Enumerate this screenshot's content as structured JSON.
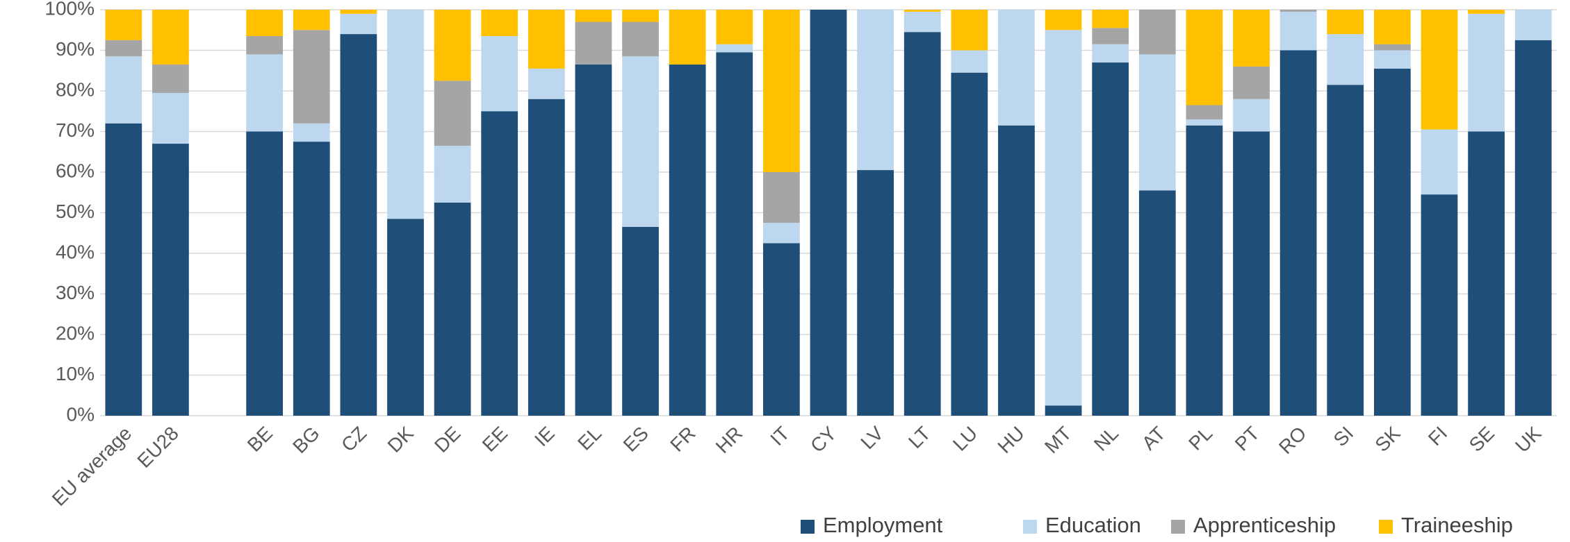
{
  "chart_data": {
    "type": "stacked_bar",
    "categories": [
      "EU average",
      "EU28",
      null,
      "BE",
      "BG",
      "CZ",
      "DK",
      "DE",
      "EE",
      "IE",
      "EL",
      "ES",
      "FR",
      "HR",
      "IT",
      "CY",
      "LV",
      "LT",
      "LU",
      "HU",
      "MT",
      "NL",
      "AT",
      "PL",
      "PT",
      "RO",
      "SI",
      "SK",
      "FI",
      "SE",
      "UK"
    ],
    "series": [
      {
        "name": "Employment",
        "color": "#1f4e79",
        "values": [
          72,
          67,
          null,
          70,
          67.5,
          94,
          48.5,
          52.5,
          75,
          78,
          86.5,
          46.5,
          86.5,
          89.5,
          42.5,
          100,
          60.5,
          94.5,
          84.5,
          71.5,
          2.5,
          87,
          55.5,
          71.5,
          70,
          90,
          81.5,
          85.5,
          54.5,
          70,
          92.5
        ]
      },
      {
        "name": "Education",
        "color": "#bdd7ee",
        "values": [
          16.5,
          12.5,
          null,
          19,
          4.5,
          5,
          51.5,
          14,
          18.5,
          7.5,
          0,
          42,
          0,
          2,
          5,
          0,
          39.5,
          5,
          5.5,
          28.5,
          92.5,
          4.5,
          33.5,
          1.5,
          8,
          9.5,
          12.5,
          4.5,
          16,
          29,
          7.5
        ]
      },
      {
        "name": "Apprenticeship",
        "color": "#a5a5a5",
        "values": [
          4,
          7,
          null,
          4.5,
          23,
          0,
          0,
          16,
          0,
          0,
          10.5,
          8.5,
          0,
          0,
          12.5,
          0,
          0,
          0,
          0,
          0,
          0,
          4,
          11,
          3.5,
          8,
          0.5,
          0,
          1.5,
          0,
          0,
          0
        ]
      },
      {
        "name": "Traineeship",
        "color": "#ffc000",
        "values": [
          7.5,
          13.5,
          null,
          6.5,
          5,
          1,
          0,
          17.5,
          6.5,
          14.5,
          3,
          3,
          13.5,
          8.5,
          40,
          0,
          0,
          0.5,
          10,
          0,
          5,
          4.5,
          0,
          23.5,
          14,
          0,
          6,
          8.5,
          29.5,
          1,
          0
        ]
      }
    ],
    "ylim": [
      0,
      100
    ],
    "yticks": [
      {
        "value": 0,
        "label": "0%"
      },
      {
        "value": 10,
        "label": "10%"
      },
      {
        "value": 20,
        "label": "20%"
      },
      {
        "value": 30,
        "label": "30%"
      },
      {
        "value": 40,
        "label": "40%"
      },
      {
        "value": 50,
        "label": "50%"
      },
      {
        "value": 60,
        "label": "60%"
      },
      {
        "value": 70,
        "label": "70%"
      },
      {
        "value": 80,
        "label": "80%"
      },
      {
        "value": 90,
        "label": "90%"
      },
      {
        "value": 100,
        "label": "100%"
      }
    ],
    "grid": true,
    "legend": "bottom-right"
  }
}
